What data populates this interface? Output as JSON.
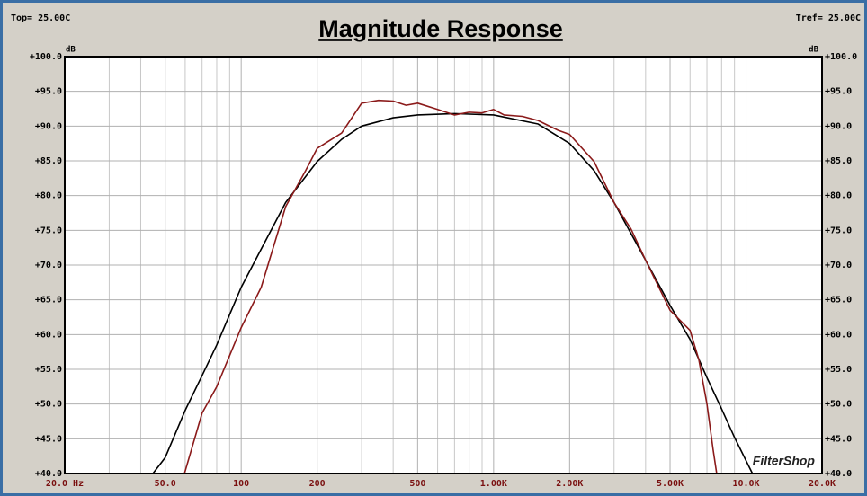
{
  "chart_data": {
    "type": "line",
    "title": "Magnitude Response",
    "top_label": "Top=  25.00C",
    "tref_label": "Tref=  25.00C",
    "y_unit": "dB",
    "watermark": "FilterShop",
    "log_x": true,
    "grid": true,
    "xlim": [
      20,
      20000
    ],
    "ylim": [
      40,
      100
    ],
    "xticks": [
      {
        "value": 20,
        "label": "20.0 Hz"
      },
      {
        "value": 50,
        "label": "50.0"
      },
      100,
      200,
      500,
      {
        "value": 1000,
        "label": "1.00K"
      },
      {
        "value": 2000,
        "label": "2.00K"
      },
      {
        "value": 5000,
        "label": "5.00K"
      },
      {
        "value": 10000,
        "label": "10.0K"
      },
      {
        "value": 20000,
        "label": "20.0K"
      }
    ],
    "xminorticks": [
      30,
      40,
      60,
      70,
      80,
      90,
      300,
      400,
      600,
      700,
      800,
      900,
      3000,
      4000,
      6000,
      7000,
      8000,
      9000
    ],
    "yticks": [
      {
        "value": 100,
        "label": "+100.0"
      },
      {
        "value": 95,
        "label": "+95.0"
      },
      {
        "value": 90,
        "label": "+90.0"
      },
      {
        "value": 85,
        "label": "+85.0"
      },
      {
        "value": 80,
        "label": "+80.0"
      },
      {
        "value": 75,
        "label": "+75.0"
      },
      {
        "value": 70,
        "label": "+70.0"
      },
      {
        "value": 65,
        "label": "+65.0"
      },
      {
        "value": 60,
        "label": "+60.0"
      },
      {
        "value": 55,
        "label": "+55.0"
      },
      {
        "value": 50,
        "label": "+50.0"
      },
      {
        "value": 45,
        "label": "+45.0"
      },
      {
        "value": 40,
        "label": "+40.0"
      }
    ],
    "series": [
      {
        "color": "#000000",
        "x": [
          44.7,
          50,
          60,
          70,
          80,
          100,
          120,
          150,
          200,
          250,
          300,
          400,
          500,
          700,
          1000,
          1500,
          2000,
          2500,
          3000,
          4000,
          5000,
          6000,
          7000,
          8000,
          9000,
          10600
        ],
        "values": [
          40,
          42.3,
          49.1,
          54.1,
          58.5,
          66.8,
          72.3,
          79,
          84.9,
          88.1,
          90,
          91.2,
          91.6,
          91.8,
          91.6,
          90.3,
          87.5,
          83.6,
          79,
          70.7,
          64.2,
          59.3,
          53.8,
          49.3,
          45.2,
          40
        ]
      },
      {
        "color": "#8b1a1a",
        "x": [
          20,
          59.6,
          70,
          80,
          100,
          120,
          150,
          180,
          200,
          250,
          300,
          350,
          400,
          450,
          500,
          600,
          700,
          800,
          900,
          1000,
          1100,
          1300,
          1500,
          1800,
          2000,
          2500,
          3000,
          3500,
          4000,
          5000,
          6000,
          6500,
          7000,
          7400,
          7650
        ],
        "values": [
          40,
          40,
          48.7,
          52.5,
          61,
          66.8,
          78.4,
          83.6,
          86.8,
          89,
          93.3,
          93.7,
          93.6,
          93,
          93.3,
          92.4,
          91.6,
          92,
          91.9,
          92.4,
          91.6,
          91.4,
          90.8,
          89.4,
          88.8,
          84.9,
          79,
          75.2,
          70.7,
          63.5,
          60.6,
          56.4,
          50,
          43.5,
          40
        ]
      }
    ]
  }
}
